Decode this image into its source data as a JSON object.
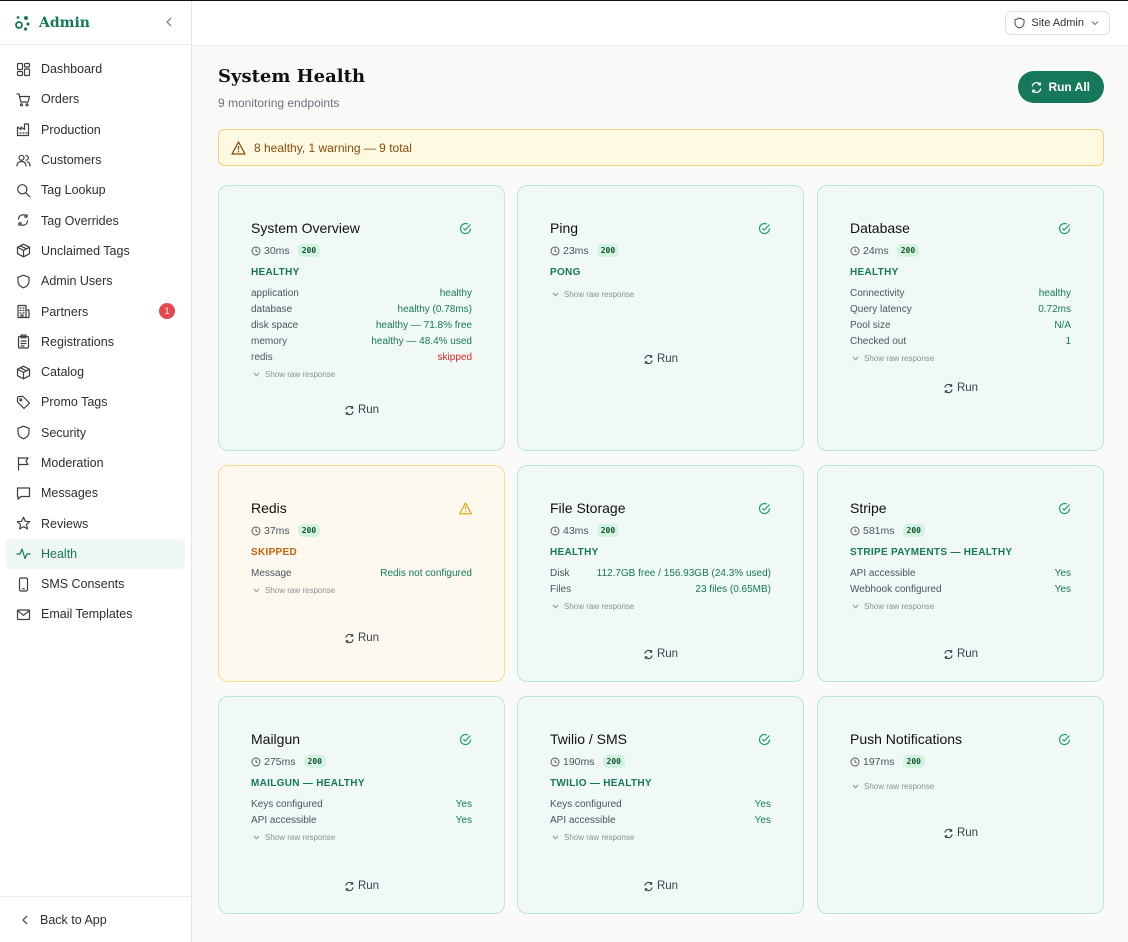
{
  "brand": {
    "name": "Admin"
  },
  "sidebar": {
    "items": [
      {
        "label": "Dashboard",
        "icon": "dashboard-icon"
      },
      {
        "label": "Orders",
        "icon": "cart-icon"
      },
      {
        "label": "Production",
        "icon": "factory-icon"
      },
      {
        "label": "Customers",
        "icon": "users-icon"
      },
      {
        "label": "Tag Lookup",
        "icon": "search-icon"
      },
      {
        "label": "Tag Overrides",
        "icon": "refresh-icon"
      },
      {
        "label": "Unclaimed Tags",
        "icon": "package-icon"
      },
      {
        "label": "Admin Users",
        "icon": "shield-icon"
      },
      {
        "label": "Partners",
        "icon": "building-icon",
        "badge": "1"
      },
      {
        "label": "Registrations",
        "icon": "clipboard-icon"
      },
      {
        "label": "Catalog",
        "icon": "package-icon"
      },
      {
        "label": "Promo Tags",
        "icon": "tag-icon"
      },
      {
        "label": "Security",
        "icon": "shield-icon"
      },
      {
        "label": "Moderation",
        "icon": "flag-icon"
      },
      {
        "label": "Messages",
        "icon": "message-icon"
      },
      {
        "label": "Reviews",
        "icon": "star-icon"
      },
      {
        "label": "Health",
        "icon": "activity-icon",
        "active": true
      },
      {
        "label": "SMS Consents",
        "icon": "phone-icon"
      },
      {
        "label": "Email Templates",
        "icon": "mail-icon"
      }
    ],
    "back_label": "Back to App"
  },
  "header": {
    "role_label": "Site Admin"
  },
  "page": {
    "title": "System Health",
    "subtitle": "9 monitoring endpoints",
    "run_all_label": "Run All",
    "alert": "8 healthy, 1 warning — 9 total"
  },
  "colors": {
    "accent": "#16785a",
    "healthy_bg": "#f0f9f5",
    "warning_bg": "#fdf9ef",
    "badge_red": "#e5484d"
  },
  "cards": [
    {
      "title": "System Overview",
      "time": "30ms",
      "code": "200",
      "state": "HEALTHY",
      "status": "ok",
      "rows": [
        [
          "application",
          "healthy"
        ],
        [
          "database",
          "healthy (0.78ms)"
        ],
        [
          "disk space",
          "healthy — 71.8% free"
        ],
        [
          "memory",
          "healthy — 48.4% used"
        ],
        [
          "redis",
          "skipped"
        ]
      ],
      "raw_label": "Show raw response",
      "run_label": "Run"
    },
    {
      "title": "Ping",
      "time": "23ms",
      "code": "200",
      "state": "PONG",
      "status": "ok",
      "rows": [],
      "raw_label": "Show raw response",
      "run_label": "Run"
    },
    {
      "title": "Database",
      "time": "24ms",
      "code": "200",
      "state": "HEALTHY",
      "status": "ok",
      "rows": [
        [
          "Connectivity",
          "healthy"
        ],
        [
          "Query latency",
          "0.72ms"
        ],
        [
          "Pool size",
          "N/A"
        ],
        [
          "Checked out",
          "1"
        ]
      ],
      "raw_label": "Show raw response",
      "run_label": "Run"
    },
    {
      "title": "Redis",
      "time": "37ms",
      "code": "200",
      "state": "SKIPPED",
      "status": "warn",
      "rows": [
        [
          "Message",
          "Redis not configured"
        ]
      ],
      "raw_label": "Show raw response",
      "run_label": "Run"
    },
    {
      "title": "File Storage",
      "time": "43ms",
      "code": "200",
      "state": "HEALTHY",
      "status": "ok",
      "rows": [
        [
          "Disk",
          "112.7GB free / 156.93GB (24.3% used)"
        ],
        [
          "Files",
          "23 files (0.65MB)"
        ]
      ],
      "raw_label": "Show raw response",
      "run_label": "Run"
    },
    {
      "title": "Stripe",
      "time": "581ms",
      "code": "200",
      "state": "STRIPE PAYMENTS — HEALTHY",
      "status": "ok",
      "rows": [
        [
          "API accessible",
          "Yes"
        ],
        [
          "Webhook configured",
          "Yes"
        ]
      ],
      "raw_label": "Show raw response",
      "run_label": "Run"
    },
    {
      "title": "Mailgun",
      "time": "275ms",
      "code": "200",
      "state": "MAILGUN — HEALTHY",
      "status": "ok",
      "rows": [
        [
          "Keys configured",
          "Yes"
        ],
        [
          "API accessible",
          "Yes"
        ]
      ],
      "raw_label": "Show raw response",
      "run_label": "Run"
    },
    {
      "title": "Twilio / SMS",
      "time": "190ms",
      "code": "200",
      "state": "TWILIO — HEALTHY",
      "status": "ok",
      "rows": [
        [
          "Keys configured",
          "Yes"
        ],
        [
          "API accessible",
          "Yes"
        ]
      ],
      "raw_label": "Show raw response",
      "run_label": "Run"
    },
    {
      "title": "Push Notifications",
      "time": "197ms",
      "code": "200",
      "state": "",
      "status": "ok",
      "rows": [],
      "raw_label": "Show raw response",
      "run_label": "Run"
    }
  ]
}
